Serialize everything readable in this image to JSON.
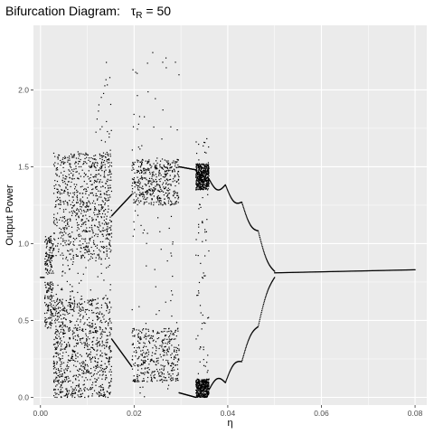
{
  "chart_data": {
    "type": "scatter",
    "title": "Bifurcation Diagram:",
    "title_math": {
      "symbol": "τ",
      "subscript": "R",
      "rest": " = 50"
    },
    "xlabel": "η",
    "ylabel": "Output Power",
    "xlim": [
      -0.0015,
      0.0825
    ],
    "ylim": [
      -0.05,
      2.42
    ],
    "x_ticks": [
      0.0,
      0.02,
      0.04,
      0.06,
      0.08
    ],
    "x_tick_labels": [
      "0.00",
      "0.02",
      "0.04",
      "0.06",
      "0.08"
    ],
    "y_ticks": [
      0.0,
      0.5,
      1.0,
      1.5,
      2.0
    ],
    "y_tick_labels": [
      "0.0",
      "0.5",
      "1.0",
      "1.5",
      "2.0"
    ],
    "grid": true,
    "legend": "none",
    "colors": {
      "panel": "#ebebeb",
      "grid": "#ffffff",
      "points": "#000000"
    },
    "regions": [
      {
        "x": [
          0.0,
          0.0008
        ],
        "kind": "fixed",
        "y": [
          0.78
        ]
      },
      {
        "x": [
          0.0009,
          0.0028
        ],
        "kind": "bands",
        "bands": [
          [
            0.8,
            1.05
          ],
          [
            0.45,
            0.75
          ]
        ]
      },
      {
        "x": [
          0.0028,
          0.0152
        ],
        "kind": "chaos",
        "ymin": 0.0,
        "ymax": 2.37
      },
      {
        "x": [
          0.0152,
          0.0195
        ],
        "kind": "branches",
        "upper": [
          1.18,
          1.32
        ],
        "lower": [
          0.38,
          0.2
        ]
      },
      {
        "x": [
          0.0195,
          0.0296
        ],
        "kind": "chaos_bands",
        "bands": [
          [
            1.25,
            1.55
          ],
          [
            0.1,
            0.45
          ]
        ],
        "spread": [
          0.0,
          2.25
        ]
      },
      {
        "x": [
          0.0296,
          0.0332
        ],
        "kind": "branches",
        "upper": [
          1.5,
          1.48
        ],
        "lower": [
          0.03,
          0.0
        ]
      },
      {
        "x": [
          0.0332,
          0.036
        ],
        "kind": "chaos_bands",
        "bands": [
          [
            1.35,
            1.52
          ],
          [
            0.0,
            0.12
          ]
        ],
        "spread": [
          0.0,
          1.7
        ]
      },
      {
        "x": [
          0.036,
          0.05
        ],
        "kind": "scallop",
        "upper": [
          1.42,
          0.82
        ],
        "lower": [
          0.05,
          0.78
        ]
      },
      {
        "x": [
          0.05,
          0.08
        ],
        "kind": "fixed_line",
        "y": [
          0.81,
          0.83
        ]
      }
    ]
  }
}
